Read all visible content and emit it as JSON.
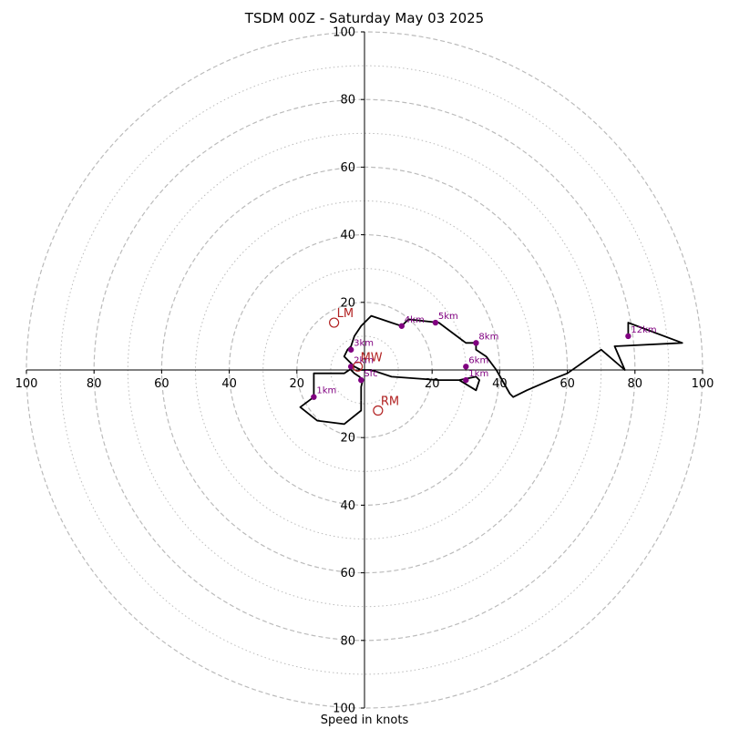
{
  "chart_data": {
    "type": "hodograph",
    "title": "TSDM 00Z - Saturday May 03 2025",
    "xlabel": "Speed in knots",
    "units": "knots",
    "axis_range": [
      -100,
      100
    ],
    "rings_dashed": [
      20,
      40,
      60,
      80,
      100
    ],
    "rings_dotted": [
      10,
      30,
      50,
      70,
      90
    ],
    "ticks": {
      "x": [
        "100",
        "80",
        "60",
        "40",
        "20",
        "20",
        "40",
        "60",
        "80",
        "100"
      ],
      "x_values": [
        -100,
        -80,
        -60,
        -40,
        -20,
        20,
        40,
        60,
        80,
        100
      ],
      "y": [
        "100",
        "80",
        "60",
        "40",
        "20",
        "20",
        "40",
        "60",
        "80",
        "100"
      ],
      "y_values": [
        100,
        80,
        60,
        40,
        20,
        -20,
        -40,
        -60,
        -80,
        -100
      ]
    },
    "trace": [
      [
        -1,
        -9
      ],
      [
        -1,
        -5
      ],
      [
        -0.5,
        -3
      ],
      [
        -1.5,
        -2
      ],
      [
        -3,
        -1
      ],
      [
        -4,
        0
      ],
      [
        -4,
        1
      ],
      [
        -3,
        1
      ],
      [
        -4,
        2
      ],
      [
        -6,
        4
      ],
      [
        -5,
        6
      ],
      [
        -4,
        7
      ],
      [
        -3,
        10
      ],
      [
        -1,
        13
      ],
      [
        2,
        16
      ],
      [
        5,
        15
      ],
      [
        8,
        14
      ],
      [
        11,
        13
      ],
      [
        13,
        15
      ],
      [
        22,
        14
      ],
      [
        30,
        8
      ],
      [
        33,
        8
      ],
      [
        33,
        6
      ],
      [
        36,
        4
      ],
      [
        39,
        0
      ],
      [
        43,
        -7
      ],
      [
        44,
        -8
      ],
      [
        48,
        -6
      ],
      [
        55,
        -3
      ],
      [
        60,
        -1
      ],
      [
        70,
        6
      ],
      [
        77,
        0
      ],
      [
        74,
        7
      ],
      [
        94,
        8
      ],
      [
        78,
        14
      ],
      [
        78,
        10
      ]
    ],
    "trace_low": [
      [
        -1,
        -9
      ],
      [
        -1,
        -12
      ],
      [
        -6,
        -16
      ],
      [
        -14,
        -15
      ],
      [
        -19,
        -11
      ],
      [
        -15,
        -8
      ],
      [
        -15,
        -1
      ],
      [
        -6,
        -1
      ],
      [
        -3,
        1
      ],
      [
        -1,
        0
      ],
      [
        2,
        0
      ],
      [
        8,
        -2
      ],
      [
        22,
        -3
      ],
      [
        28,
        -3
      ],
      [
        33,
        -2
      ],
      [
        34,
        -3
      ],
      [
        33,
        -6
      ],
      [
        28,
        -3
      ],
      [
        23,
        -3
      ]
    ],
    "height_markers": [
      {
        "label": "Sfc",
        "u": -1,
        "v": -3
      },
      {
        "label": "1km",
        "u": -15,
        "v": -8
      },
      {
        "label": "3km",
        "u": -4,
        "v": 6
      },
      {
        "label": "4km",
        "u": 11,
        "v": 13
      },
      {
        "label": "5km",
        "u": 21,
        "v": 14
      },
      {
        "label": "8km",
        "u": 33,
        "v": 8
      },
      {
        "label": "6km",
        "u": 30,
        "v": 1
      },
      {
        "label": "1km",
        "u": 30,
        "v": -3
      },
      {
        "label": "12km",
        "u": 78,
        "v": 10
      },
      {
        "label": "2km",
        "u": -4,
        "v": 1
      }
    ],
    "motion_markers": [
      {
        "label": "LM",
        "u": -9,
        "v": 14
      },
      {
        "label": "RM",
        "u": 4,
        "v": -12
      },
      {
        "label": "MW",
        "u": -2,
        "v": 1
      }
    ],
    "colors": {
      "grid": "#bbbbbb",
      "trace": "#000000",
      "height_marker": "#800080",
      "motion_marker": "#b22222"
    }
  }
}
